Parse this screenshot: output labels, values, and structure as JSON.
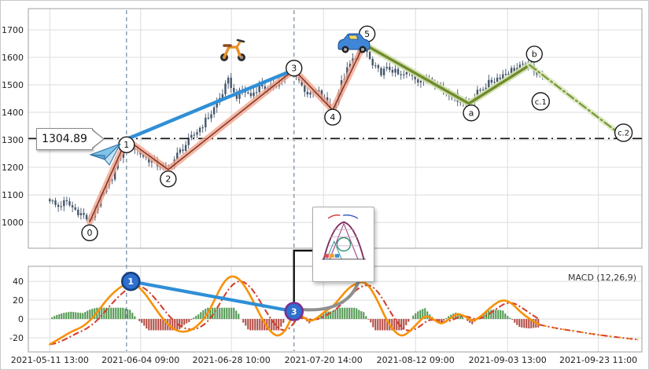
{
  "figure": {
    "price_label": "1304.89",
    "macd_legend": "MACD (12,26,9)"
  },
  "chart_data": {
    "type": "candlestick_with_macd",
    "x_axis": {
      "ticks": [
        {
          "label": "2021-05-11 13:00",
          "pos": 0.035
        },
        {
          "label": "2021-06-04 09:00",
          "pos": 0.183
        },
        {
          "label": "2021-06-28 10:00",
          "pos": 0.331
        },
        {
          "label": "2021-07-20 14:00",
          "pos": 0.481
        },
        {
          "label": "2021-08-12 09:00",
          "pos": 0.631
        },
        {
          "label": "2021-09-03 13:00",
          "pos": 0.781
        },
        {
          "label": "2021-09-23 11:00",
          "pos": 0.929
        }
      ],
      "vertical_marker_lines": [
        0.16,
        0.433
      ]
    },
    "price_panel": {
      "ylim": [
        906,
        1777
      ],
      "y_ticks": [
        1000,
        1100,
        1200,
        1300,
        1400,
        1500,
        1600,
        1700
      ],
      "price_level_line": {
        "value": 1304.89,
        "label": "1304.89"
      },
      "candle_span": [
        0.035,
        0.84
      ],
      "close_path": [
        [
          0.035,
          1085
        ],
        [
          0.047,
          1055
        ],
        [
          0.06,
          1075
        ],
        [
          0.077,
          1045
        ],
        [
          0.09,
          1025
        ],
        [
          0.1,
          1002
        ],
        [
          0.112,
          1060
        ],
        [
          0.124,
          1110
        ],
        [
          0.137,
          1170
        ],
        [
          0.15,
          1240
        ],
        [
          0.16,
          1302
        ],
        [
          0.173,
          1270
        ],
        [
          0.188,
          1240
        ],
        [
          0.206,
          1215
        ],
        [
          0.228,
          1192
        ],
        [
          0.244,
          1250
        ],
        [
          0.263,
          1300
        ],
        [
          0.282,
          1350
        ],
        [
          0.299,
          1400
        ],
        [
          0.314,
          1460
        ],
        [
          0.327,
          1520
        ],
        [
          0.337,
          1455
        ],
        [
          0.35,
          1480
        ],
        [
          0.363,
          1460
        ],
        [
          0.378,
          1505
        ],
        [
          0.391,
          1480
        ],
        [
          0.406,
          1510
        ],
        [
          0.419,
          1530
        ],
        [
          0.433,
          1555
        ],
        [
          0.446,
          1495
        ],
        [
          0.459,
          1460
        ],
        [
          0.472,
          1475
        ],
        [
          0.483,
          1445
        ],
        [
          0.496,
          1408
        ],
        [
          0.509,
          1500
        ],
        [
          0.522,
          1565
        ],
        [
          0.535,
          1610
        ],
        [
          0.547,
          1648
        ],
        [
          0.56,
          1570
        ],
        [
          0.573,
          1545
        ],
        [
          0.59,
          1560
        ],
        [
          0.606,
          1530
        ],
        [
          0.622,
          1545
        ],
        [
          0.637,
          1515
        ],
        [
          0.654,
          1528
        ],
        [
          0.671,
          1495
        ],
        [
          0.686,
          1470
        ],
        [
          0.701,
          1448
        ],
        [
          0.718,
          1432
        ],
        [
          0.735,
          1480
        ],
        [
          0.753,
          1510
        ],
        [
          0.771,
          1535
        ],
        [
          0.788,
          1555
        ],
        [
          0.804,
          1565
        ],
        [
          0.817,
          1572
        ],
        [
          0.829,
          1545
        ],
        [
          0.84,
          1528
        ]
      ],
      "elliott_waves": {
        "impulse_labels": [
          "0",
          "1",
          "2",
          "3",
          "4",
          "5"
        ],
        "impulse_points": [
          [
            0.1,
            1002
          ],
          [
            0.16,
            1302
          ],
          [
            0.228,
            1192
          ],
          [
            0.433,
            1555
          ],
          [
            0.496,
            1408
          ],
          [
            0.547,
            1648
          ]
        ],
        "correction_labels": [
          "a",
          "b"
        ],
        "correction_points": [
          [
            0.547,
            1648
          ],
          [
            0.718,
            1432
          ],
          [
            0.817,
            1572
          ]
        ],
        "projection_points": [
          [
            0.817,
            1572
          ],
          [
            0.96,
            1328
          ]
        ],
        "projection_markers": [
          {
            "label": "c.1",
            "pos": [
              0.835,
              1440
            ]
          },
          {
            "label": "c.2",
            "pos": [
              0.97,
              1326
            ]
          }
        ]
      },
      "divergence_line": [
        [
          0.16,
          1302
        ],
        [
          0.433,
          1555
        ]
      ],
      "marker_offsets": {
        "0": [
          0,
          14
        ],
        "1": [
          0,
          7
        ],
        "2": [
          0,
          12
        ],
        "3": [
          0,
          -2
        ],
        "4": [
          0,
          9
        ],
        "5": [
          4,
          -13
        ],
        "a": [
          3,
          12
        ],
        "b": [
          6,
          -14
        ],
        "c.1": [
          0,
          0
        ],
        "c.2": [
          0,
          0
        ]
      }
    },
    "macd_panel": {
      "name": "MACD (12,26,9)",
      "ylim": [
        -35,
        56
      ],
      "y_ticks": [
        -20,
        0,
        20,
        40
      ],
      "macd_line": [
        [
          0.035,
          -27
        ],
        [
          0.051,
          -21
        ],
        [
          0.071,
          -13
        ],
        [
          0.09,
          -8
        ],
        [
          0.109,
          4
        ],
        [
          0.128,
          21
        ],
        [
          0.147,
          33
        ],
        [
          0.167,
          40
        ],
        [
          0.186,
          31
        ],
        [
          0.205,
          13
        ],
        [
          0.224,
          -4
        ],
        [
          0.244,
          -14
        ],
        [
          0.263,
          -13
        ],
        [
          0.278,
          -6
        ],
        [
          0.291,
          4
        ],
        [
          0.304,
          21
        ],
        [
          0.317,
          38
        ],
        [
          0.329,
          46
        ],
        [
          0.342,
          44
        ],
        [
          0.355,
          33
        ],
        [
          0.368,
          17
        ],
        [
          0.381,
          0
        ],
        [
          0.394,
          -13
        ],
        [
          0.406,
          -19
        ],
        [
          0.419,
          -13
        ],
        [
          0.433,
          8
        ],
        [
          0.445,
          4
        ],
        [
          0.458,
          -3
        ],
        [
          0.471,
          1
        ],
        [
          0.483,
          8
        ],
        [
          0.496,
          13
        ],
        [
          0.509,
          23
        ],
        [
          0.522,
          33
        ],
        [
          0.535,
          38
        ],
        [
          0.547,
          40
        ],
        [
          0.558,
          33
        ],
        [
          0.571,
          17
        ],
        [
          0.583,
          0
        ],
        [
          0.596,
          -13
        ],
        [
          0.609,
          -19
        ],
        [
          0.622,
          -13
        ],
        [
          0.635,
          -4
        ],
        [
          0.647,
          4
        ],
        [
          0.66,
          0
        ],
        [
          0.673,
          -6
        ],
        [
          0.686,
          0
        ],
        [
          0.699,
          6
        ],
        [
          0.712,
          3
        ],
        [
          0.724,
          -3
        ],
        [
          0.74,
          4
        ],
        [
          0.756,
          14
        ],
        [
          0.773,
          21
        ],
        [
          0.788,
          17
        ],
        [
          0.801,
          8
        ],
        [
          0.817,
          0
        ],
        [
          0.833,
          -6
        ]
      ],
      "signal_projection": [
        [
          0.833,
          -6
        ],
        [
          0.853,
          -9
        ],
        [
          0.891,
          -13
        ],
        [
          0.929,
          -17
        ],
        [
          0.968,
          -20
        ],
        [
          0.994,
          -22
        ]
      ],
      "markers": [
        {
          "label": "1",
          "pos": [
            0.167,
            40
          ]
        },
        {
          "label": "3",
          "pos": [
            0.433,
            8
          ]
        }
      ],
      "divergence_line": [
        [
          0.167,
          40
        ],
        [
          0.433,
          8
        ]
      ]
    },
    "colors": {
      "candle": "#44566b",
      "impulse": "#7a332a",
      "impulse_halo": "#f2a58c",
      "correction": "#6f8c2c",
      "correction_halo": "#d2dfae",
      "projection": "#7d9b3a",
      "projection_halo": "#dde9c4",
      "divergence": "#2f8fd6",
      "macd": "#f5920a",
      "signal": "#d23b2a",
      "hist_up": "#3a8a3a",
      "hist_down": "#a8322a",
      "marker_fill": "#2e6fd0",
      "marker1_ring": "#16407e",
      "marker3_ring": "#7b2f8f",
      "grid": "#dcdcdc",
      "panel_border": "#9f9f9f",
      "vline": "#7b93a8",
      "price_line": "#111111"
    }
  }
}
